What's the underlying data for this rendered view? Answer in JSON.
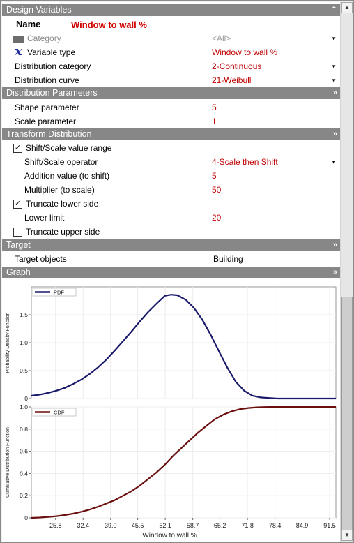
{
  "sections": {
    "design_variables": "Design Variables",
    "distribution_parameters": "Distribution Parameters",
    "transform_distribution": "Transform Distribution",
    "target": "Target",
    "graph": "Graph"
  },
  "design": {
    "name_label": "Name",
    "name_value": "Window to wall %",
    "category_label": "Category",
    "category_value": "<All>",
    "variable_type_label": "Variable type",
    "variable_type_value": "Window to wall %",
    "dist_category_label": "Distribution category",
    "dist_category_value": "2-Continuous",
    "dist_curve_label": "Distribution curve",
    "dist_curve_value": "21-Weibull"
  },
  "params": {
    "shape_label": "Shape parameter",
    "shape_value": "5",
    "scale_label": "Scale parameter",
    "scale_value": "1"
  },
  "transform": {
    "shift_scale_range_label": "Shift/Scale value range",
    "shift_scale_range_checked": true,
    "operator_label": "Shift/Scale operator",
    "operator_value": "4-Scale then Shift",
    "addition_label": "Addition value (to shift)",
    "addition_value": "5",
    "multiplier_label": "Multiplier (to scale)",
    "multiplier_value": "50",
    "truncate_lower_label": "Truncate lower side",
    "truncate_lower_checked": true,
    "lower_limit_label": "Lower limit",
    "lower_limit_value": "20",
    "truncate_upper_label": "Truncate upper side",
    "truncate_upper_checked": false
  },
  "target": {
    "objects_label": "Target objects",
    "objects_value": "Building"
  },
  "icons": {
    "collapse": "double-chevron-icon",
    "folder": "folder-icon",
    "variable": "x-variable-icon",
    "dropdown": "dropdown-arrow-icon"
  },
  "colors": {
    "section_header": "#878787",
    "value_text": "#c00000",
    "pdf_line": "#1a1a6b",
    "cdf_line": "#6b0f0f"
  },
  "chart_data": [
    {
      "type": "line",
      "title": "",
      "legend": [
        "PDF"
      ],
      "ylabel": "Probability Density Function",
      "xlabel": "",
      "ylim": [
        0,
        2.0
      ],
      "yticks": [
        "0",
        "0.5",
        "1.0",
        "1.5"
      ],
      "series": [
        {
          "name": "PDF",
          "x": [
            20,
            22,
            24,
            26,
            28,
            30,
            32,
            34,
            36,
            38,
            40,
            42,
            44,
            46,
            48,
            50,
            52,
            53.5,
            55,
            57,
            59,
            61,
            63,
            65,
            67,
            69,
            71,
            73,
            75,
            77,
            79,
            81,
            84,
            87,
            90,
            93
          ],
          "values": [
            0.05,
            0.07,
            0.1,
            0.14,
            0.19,
            0.26,
            0.34,
            0.44,
            0.56,
            0.7,
            0.86,
            1.03,
            1.2,
            1.38,
            1.55,
            1.7,
            1.84,
            1.86,
            1.85,
            1.77,
            1.62,
            1.41,
            1.14,
            0.84,
            0.55,
            0.3,
            0.14,
            0.05,
            0.02,
            0.01,
            0.0,
            0.0,
            0.0,
            0.0,
            0.0,
            0.0
          ]
        }
      ]
    },
    {
      "type": "line",
      "title": "",
      "legend": [
        "CDF"
      ],
      "ylabel": "Cumulative Distribution Function",
      "xlabel": "Window to wall %",
      "ylim": [
        0,
        1.0
      ],
      "yticks": [
        "0",
        "0.2",
        "0.4",
        "0.6",
        "0.8",
        "1.0"
      ],
      "xticks": [
        "25.8",
        "32.4",
        "39.0",
        "45.5",
        "52.1",
        "58.7",
        "65.2",
        "71.8",
        "78.4",
        "84.9",
        "91.5"
      ],
      "series": [
        {
          "name": "CDF",
          "x": [
            20,
            22,
            24,
            26,
            28,
            30,
            32,
            34,
            36,
            38,
            40,
            42,
            44,
            46,
            48,
            50,
            52,
            54,
            56,
            58,
            60,
            62,
            64,
            66,
            68,
            70,
            72,
            74,
            76,
            78,
            80,
            84,
            88,
            92,
            93
          ],
          "values": [
            0.0,
            0.003,
            0.008,
            0.015,
            0.025,
            0.038,
            0.055,
            0.075,
            0.1,
            0.13,
            0.16,
            0.2,
            0.24,
            0.29,
            0.35,
            0.41,
            0.48,
            0.56,
            0.63,
            0.7,
            0.77,
            0.83,
            0.89,
            0.93,
            0.96,
            0.98,
            0.99,
            0.996,
            0.999,
            1.0,
            1.0,
            1.0,
            1.0,
            1.0,
            1.0
          ]
        }
      ]
    }
  ]
}
